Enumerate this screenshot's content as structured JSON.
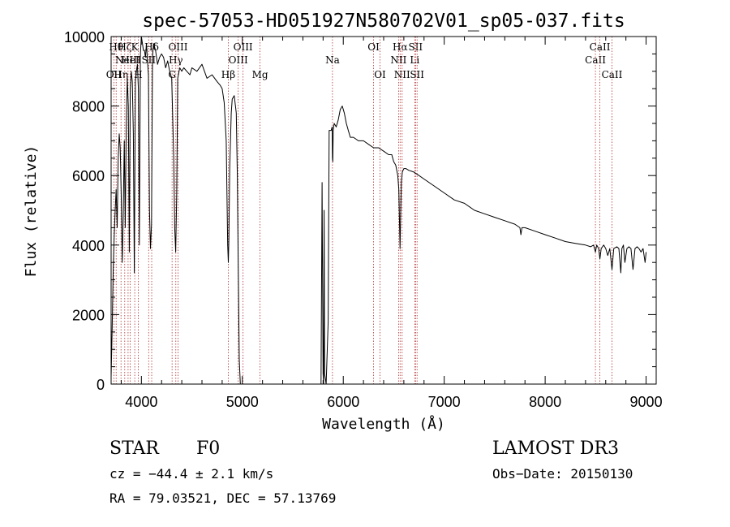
{
  "chart_data": {
    "type": "line",
    "title": "spec-57053-HD051927N580702V01_sp05-037.fits",
    "xlabel": "Wavelength (Å)",
    "ylabel": "Flux (relative)",
    "xlim": [
      3700,
      9100
    ],
    "ylim": [
      0,
      10000
    ],
    "xticks": [
      4000,
      5000,
      6000,
      7000,
      8000,
      9000
    ],
    "yticks": [
      0,
      2000,
      4000,
      6000,
      8000,
      10000
    ],
    "line_color": "#000000",
    "marker_color": "#b03030",
    "series": [
      {
        "name": "flux",
        "x": [
          3700,
          3710,
          3720,
          3730,
          3740,
          3750,
          3760,
          3770,
          3780,
          3790,
          3800,
          3810,
          3820,
          3830,
          3840,
          3850,
          3860,
          3870,
          3880,
          3890,
          3900,
          3910,
          3920,
          3930,
          3940,
          3950,
          3960,
          3970,
          3980,
          3990,
          4000,
          4010,
          4020,
          4030,
          4040,
          4050,
          4060,
          4070,
          4080,
          4090,
          4100,
          4110,
          4120,
          4140,
          4160,
          4180,
          4200,
          4220,
          4240,
          4260,
          4280,
          4300,
          4320,
          4330,
          4340,
          4350,
          4360,
          4380,
          4400,
          4420,
          4450,
          4480,
          4500,
          4550,
          4600,
          4650,
          4700,
          4750,
          4780,
          4800,
          4820,
          4840,
          4850,
          4855,
          4861,
          4867,
          4875,
          4890,
          4900,
          4920,
          4940,
          4950,
          4960,
          4970,
          4980
        ],
        "y": [
          200,
          1500,
          3200,
          4200,
          5000,
          5600,
          4500,
          6500,
          7200,
          6800,
          5500,
          3500,
          4800,
          7000,
          4500,
          7500,
          8800,
          8000,
          3800,
          8500,
          9000,
          8700,
          7200,
          3200,
          8700,
          9000,
          9200,
          8500,
          4000,
          9500,
          10100,
          9800,
          9600,
          9600,
          9400,
          9800,
          9300,
          8900,
          5000,
          3900,
          4600,
          9400,
          9800,
          9600,
          9200,
          9400,
          9500,
          9400,
          9100,
          9300,
          9000,
          8800,
          6500,
          4500,
          3800,
          5500,
          8800,
          9100,
          9000,
          9100,
          9000,
          8900,
          9100,
          9000,
          9200,
          8800,
          8900,
          8700,
          8600,
          8500,
          8100,
          7000,
          5000,
          4000,
          3500,
          4200,
          6200,
          7800,
          8200,
          8300,
          7800,
          6000,
          3200,
          700,
          0
        ]
      },
      {
        "name": "flux-red",
        "x": [
          5780,
          5790,
          5800,
          5805,
          5810,
          5815,
          5830,
          5850,
          5860,
          5880,
          5890,
          5893,
          5896,
          5900,
          5910,
          5930,
          5950,
          5970,
          5990,
          6010,
          6030,
          6050,
          6070,
          6100,
          6150,
          6200,
          6250,
          6300,
          6350,
          6400,
          6450,
          6480,
          6500,
          6520,
          6540,
          6550,
          6556,
          6562,
          6568,
          6575,
          6585,
          6600,
          6620,
          6650,
          6700,
          6750,
          6800,
          6900,
          7000,
          7100,
          7200,
          7300,
          7400,
          7500,
          7600,
          7700,
          7750,
          7760,
          7770,
          7800,
          7900,
          8000,
          8100,
          8200,
          8300,
          8400,
          8450,
          8480,
          8498,
          8510,
          8530,
          8542,
          8555,
          8580,
          8600,
          8620,
          8640,
          8662,
          8680,
          8710,
          8730,
          8750,
          8760,
          8775,
          8790,
          8810,
          8830,
          8850,
          8870,
          8890,
          8910,
          8930,
          8950,
          8970,
          8990,
          9000
        ],
        "y": [
          0,
          5800,
          300,
          0,
          5000,
          300,
          0,
          1800,
          7300,
          7300,
          7400,
          6500,
          6400,
          7300,
          7500,
          7400,
          7600,
          7900,
          8000,
          7800,
          7500,
          7300,
          7100,
          7100,
          7000,
          7000,
          6900,
          6800,
          6800,
          6700,
          6600,
          6600,
          6400,
          6300,
          6000,
          5600,
          4800,
          3900,
          4800,
          5800,
          6100,
          6200,
          6200,
          6150,
          6100,
          6000,
          5900,
          5700,
          5500,
          5300,
          5200,
          5000,
          4900,
          4800,
          4700,
          4600,
          4500,
          4300,
          4500,
          4500,
          4400,
          4300,
          4200,
          4100,
          4050,
          4000,
          3950,
          4000,
          3800,
          4000,
          3900,
          3600,
          3900,
          4000,
          3900,
          3700,
          3900,
          3300,
          3900,
          3950,
          3900,
          3200,
          3900,
          4000,
          3500,
          3900,
          3950,
          3900,
          3300,
          3900,
          3950,
          3900,
          3800,
          3900,
          3500,
          3800
        ]
      }
    ],
    "markers": [
      {
        "x": 3727,
        "label": "OII",
        "row": 3
      },
      {
        "x": 3750,
        "label": "Hθ",
        "row": 1
      },
      {
        "x": 3798,
        "label": "Hη",
        "row": 3
      },
      {
        "x": 3835,
        "label": "Hζ",
        "row": 1
      },
      {
        "x": 3868,
        "label": "NeIII",
        "row": 2
      },
      {
        "x": 3889,
        "label": "HeI",
        "row": 2
      },
      {
        "x": 3934,
        "label": "K",
        "row": 1
      },
      {
        "x": 3969,
        "label": "H",
        "row": 3
      },
      {
        "x": 4072,
        "label": "SII",
        "row": 2
      },
      {
        "x": 4102,
        "label": "Hδ",
        "row": 1
      },
      {
        "x": 4304,
        "label": "G",
        "row": 3
      },
      {
        "x": 4341,
        "label": "Hγ",
        "row": 2
      },
      {
        "x": 4363,
        "label": "OIII",
        "row": 1
      },
      {
        "x": 4861,
        "label": "Hβ",
        "row": 3
      },
      {
        "x": 4959,
        "label": "OIII",
        "row": 2
      },
      {
        "x": 5007,
        "label": "OIII",
        "row": 1
      },
      {
        "x": 5175,
        "label": "Mg",
        "row": 3
      },
      {
        "x": 5893,
        "label": "Na",
        "row": 2
      },
      {
        "x": 6300,
        "label": "OI",
        "row": 1
      },
      {
        "x": 6364,
        "label": "OI",
        "row": 3
      },
      {
        "x": 6548,
        "label": "NII",
        "row": 2
      },
      {
        "x": 6563,
        "label": "Hα",
        "row": 1
      },
      {
        "x": 6583,
        "label": "NII",
        "row": 3
      },
      {
        "x": 6708,
        "label": "Li",
        "row": 2
      },
      {
        "x": 6716,
        "label": "SII",
        "row": 1
      },
      {
        "x": 6731,
        "label": "SII",
        "row": 3
      },
      {
        "x": 8498,
        "label": "CaII",
        "row": 2
      },
      {
        "x": 8542,
        "label": "CaII",
        "row": 1
      },
      {
        "x": 8662,
        "label": "CaII",
        "row": 3
      }
    ]
  },
  "info": {
    "object_class": "STAR",
    "subclass": "F0",
    "velocity": "cz = −44.4 ± 2.1 km/s",
    "coordinates": "RA =  79.03521, DEC =  57.13769",
    "survey": "LAMOST DR3",
    "obs_date": "Obs−Date: 20150130"
  }
}
